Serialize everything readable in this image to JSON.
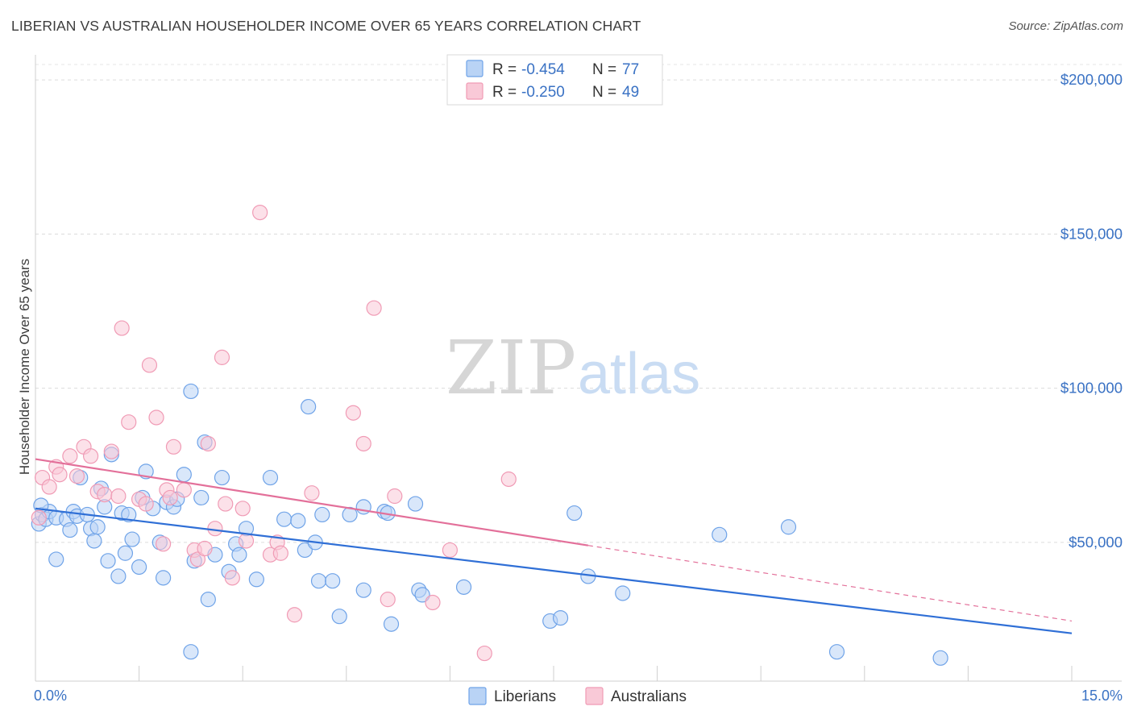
{
  "title": "LIBERIAN VS AUSTRALIAN HOUSEHOLDER INCOME OVER 65 YEARS CORRELATION CHART",
  "source": "Source: ZipAtlas.com",
  "watermark": {
    "zip": "ZIP",
    "atlas": "atlas"
  },
  "legend_top": [
    {
      "r_label": "R = ",
      "r_value": "-0.454",
      "n_label": "N = ",
      "n_value": "77",
      "color": "#6fa3e8",
      "fill": "#b9d3f5"
    },
    {
      "r_label": "R = ",
      "r_value": "-0.250",
      "n_label": "N = ",
      "n_value": "49",
      "color": "#f09bb5",
      "fill": "#f9c9d7"
    }
  ],
  "chart_data": {
    "type": "scatter",
    "ylabel": "Householder Income Over 65 years",
    "x_tick_labels": [
      "0.0%",
      "15.0%"
    ],
    "y_tick_labels": [
      "$50,000",
      "$100,000",
      "$150,000",
      "$200,000"
    ],
    "xlim": [
      0,
      15
    ],
    "ylim": [
      5000,
      205000
    ],
    "y_ticks": [
      50000,
      100000,
      150000,
      200000
    ],
    "grid": true,
    "legend_position": "bottom-center",
    "series": [
      {
        "name": "Liberians",
        "color": "#6fa3e8",
        "fill": "#b9d3f5",
        "trend": {
          "x": [
            0.0,
            15.0
          ],
          "y": [
            61000,
            20500
          ],
          "dashed_from": null,
          "line_color": "#2f6fd6"
        },
        "points": [
          [
            0.05,
            56000
          ],
          [
            0.1,
            59000
          ],
          [
            0.15,
            57500
          ],
          [
            0.2,
            60000
          ],
          [
            0.3,
            58000
          ],
          [
            0.3,
            44500
          ],
          [
            0.45,
            57500
          ],
          [
            0.5,
            54000
          ],
          [
            0.55,
            60000
          ],
          [
            0.6,
            58500
          ],
          [
            0.65,
            71000
          ],
          [
            0.75,
            59000
          ],
          [
            0.8,
            54500
          ],
          [
            0.85,
            50500
          ],
          [
            0.9,
            55000
          ],
          [
            0.95,
            67500
          ],
          [
            1.0,
            61500
          ],
          [
            1.05,
            44000
          ],
          [
            1.1,
            78500
          ],
          [
            1.2,
            39000
          ],
          [
            1.25,
            59500
          ],
          [
            1.3,
            46500
          ],
          [
            1.35,
            59000
          ],
          [
            1.4,
            51000
          ],
          [
            1.5,
            42000
          ],
          [
            1.55,
            64500
          ],
          [
            1.6,
            73000
          ],
          [
            1.7,
            61000
          ],
          [
            1.8,
            50000
          ],
          [
            1.85,
            38500
          ],
          [
            1.9,
            63000
          ],
          [
            2.0,
            61500
          ],
          [
            2.05,
            64000
          ],
          [
            2.15,
            72000
          ],
          [
            2.25,
            14500
          ],
          [
            2.25,
            99000
          ],
          [
            2.3,
            44000
          ],
          [
            2.4,
            64500
          ],
          [
            2.45,
            82500
          ],
          [
            2.5,
            31500
          ],
          [
            2.6,
            46000
          ],
          [
            2.7,
            71000
          ],
          [
            2.8,
            40500
          ],
          [
            2.9,
            49500
          ],
          [
            2.95,
            46000
          ],
          [
            3.05,
            54500
          ],
          [
            3.2,
            38000
          ],
          [
            3.4,
            71000
          ],
          [
            3.6,
            57500
          ],
          [
            3.8,
            57000
          ],
          [
            3.9,
            47500
          ],
          [
            3.95,
            94000
          ],
          [
            4.05,
            50000
          ],
          [
            4.1,
            37500
          ],
          [
            4.15,
            59000
          ],
          [
            4.3,
            37500
          ],
          [
            4.4,
            26000
          ],
          [
            4.55,
            59000
          ],
          [
            4.75,
            61500
          ],
          [
            4.75,
            34500
          ],
          [
            5.05,
            60000
          ],
          [
            5.1,
            59500
          ],
          [
            5.15,
            23500
          ],
          [
            5.5,
            62500
          ],
          [
            5.55,
            34500
          ],
          [
            5.6,
            33000
          ],
          [
            6.2,
            35500
          ],
          [
            7.45,
            24500
          ],
          [
            7.6,
            25500
          ],
          [
            7.8,
            59500
          ],
          [
            8.0,
            39000
          ],
          [
            8.5,
            33500
          ],
          [
            9.9,
            52500
          ],
          [
            10.9,
            55000
          ],
          [
            11.6,
            14500
          ],
          [
            13.1,
            12500
          ],
          [
            0.08,
            62000
          ]
        ]
      },
      {
        "name": "Australians",
        "color": "#f09bb5",
        "fill": "#f9c9d7",
        "trend": {
          "x": [
            0.0,
            15.0
          ],
          "y": [
            77000,
            24500
          ],
          "dashed_from": 8.0,
          "line_color": "#e3709a"
        },
        "points": [
          [
            0.05,
            58000
          ],
          [
            0.1,
            71000
          ],
          [
            0.2,
            68000
          ],
          [
            0.3,
            74500
          ],
          [
            0.35,
            72000
          ],
          [
            0.5,
            78000
          ],
          [
            0.6,
            71500
          ],
          [
            0.7,
            81000
          ],
          [
            0.8,
            78000
          ],
          [
            0.9,
            66500
          ],
          [
            1.0,
            65500
          ],
          [
            1.1,
            79500
          ],
          [
            1.2,
            65000
          ],
          [
            1.25,
            119500
          ],
          [
            1.35,
            89000
          ],
          [
            1.5,
            64000
          ],
          [
            1.6,
            62500
          ],
          [
            1.65,
            107500
          ],
          [
            1.75,
            90500
          ],
          [
            1.85,
            49500
          ],
          [
            1.9,
            67000
          ],
          [
            1.95,
            64500
          ],
          [
            2.0,
            81000
          ],
          [
            2.15,
            67000
          ],
          [
            2.3,
            47500
          ],
          [
            2.35,
            44500
          ],
          [
            2.45,
            48000
          ],
          [
            2.5,
            82000
          ],
          [
            2.6,
            54500
          ],
          [
            2.7,
            110000
          ],
          [
            2.75,
            62500
          ],
          [
            2.85,
            38500
          ],
          [
            3.0,
            61000
          ],
          [
            3.05,
            50500
          ],
          [
            3.25,
            157000
          ],
          [
            3.4,
            46000
          ],
          [
            3.5,
            50000
          ],
          [
            3.55,
            46500
          ],
          [
            3.75,
            26500
          ],
          [
            4.0,
            66000
          ],
          [
            4.6,
            92000
          ],
          [
            4.75,
            82000
          ],
          [
            4.9,
            126000
          ],
          [
            5.1,
            31500
          ],
          [
            5.2,
            65000
          ],
          [
            5.75,
            30500
          ],
          [
            6.0,
            47500
          ],
          [
            6.5,
            14000
          ],
          [
            6.85,
            70500
          ]
        ]
      }
    ]
  }
}
